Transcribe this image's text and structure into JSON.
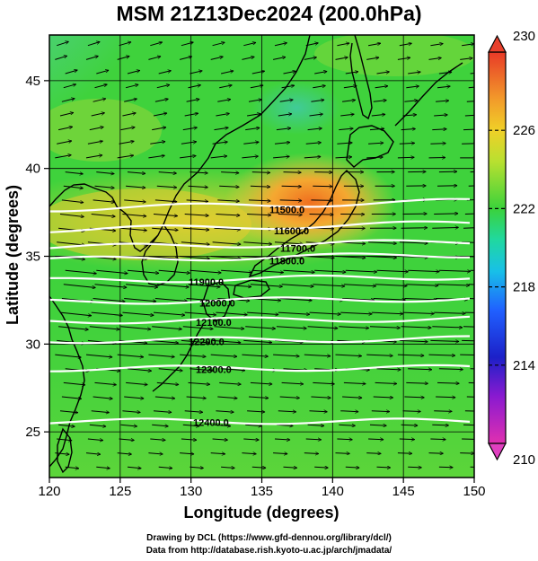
{
  "title": "MSM 21Z13Dec2024 (200.0hPa)",
  "axes": {
    "xlabel": "Longitude (degrees)",
    "ylabel": "Latitude  (degrees)",
    "x_ticks": [
      "120",
      "125",
      "130",
      "135",
      "140",
      "145",
      "150"
    ],
    "y_ticks": [
      "25",
      "30",
      "35",
      "40",
      "45"
    ],
    "xlim": [
      120,
      150
    ],
    "ylim": [
      22.4,
      47.6
    ]
  },
  "colorbar": {
    "ticks": [
      "210",
      "214",
      "218",
      "222",
      "226",
      "230"
    ],
    "range": [
      210,
      230
    ]
  },
  "contours": [
    {
      "label": "11500.0",
      "lat": 37.7
    },
    {
      "label": "11600.0",
      "lat": 36.5
    },
    {
      "label": "11700.0",
      "lat": 35.5
    },
    {
      "label": "11800.0",
      "lat": 34.8
    },
    {
      "label": "11900.0",
      "lat": 33.6
    },
    {
      "label": "12000.0",
      "lat": 32.4
    },
    {
      "label": "12100.0",
      "lat": 31.3
    },
    {
      "label": "12200.0",
      "lat": 30.2
    },
    {
      "label": "12300.0",
      "lat": 28.6
    },
    {
      "label": "12400.0",
      "lat": 25.6
    }
  ],
  "credits": {
    "line1": "Drawing by DCL (https://www.gfd-dennou.org/library/dcl/)",
    "line2": "Data from http://database.rish.kyoto-u.ac.jp/arch/jmadata/"
  },
  "colors": {
    "shade_main": "#39d23c",
    "shade_warm": "#f2a431",
    "shade_cool": "#3fbfe8",
    "contour": "#ffffff",
    "vector": "#000000"
  }
}
